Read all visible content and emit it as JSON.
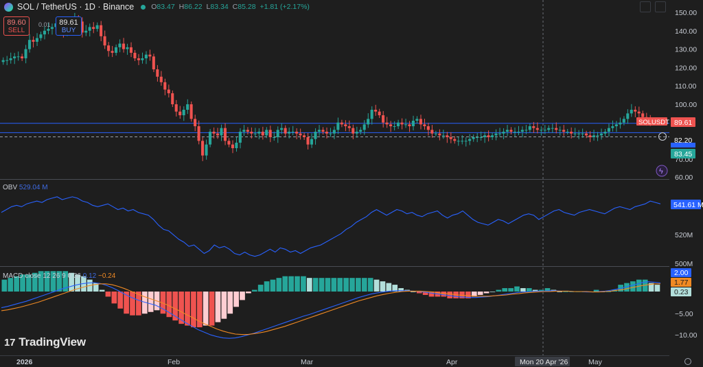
{
  "header": {
    "title": "SOL / TetherUS · 1D · Binance",
    "open_label": "O",
    "open": "83.47",
    "high_label": "H",
    "high": "86.22",
    "low_label": "L",
    "low": "83.34",
    "close_label": "C",
    "close": "85.28",
    "change": "+1.81 (+2.17%)"
  },
  "trade": {
    "sell_price": "89.60",
    "sell_label": "SELL",
    "buy_price": "89.61",
    "buy_label": "BUY",
    "spread": "0.01"
  },
  "obv_label": {
    "name": "OBV",
    "value": "529.04 M"
  },
  "macd_label": {
    "name": "MACD close 12 26 9",
    "hist": "0.36",
    "macd": "0.12",
    "signal": "−0.24"
  },
  "logo": {
    "text": "TradingView",
    "icon": "tradingview-logo-icon"
  },
  "colors": {
    "up": "#26a69a",
    "down": "#ef5350",
    "blue": "#2962ff",
    "orange": "#f08a24",
    "bg": "#1e1e1e"
  },
  "chart_data": [
    {
      "type": "candlestick",
      "title": "SOL / TetherUS · 1D · Binance",
      "x_ticks": [
        "2026",
        "Feb",
        "Mar",
        "Apr",
        "Mon 20 Apr '26",
        "May"
      ],
      "y_ticks": [
        "150.00",
        "140.00",
        "130.00",
        "120.00",
        "110.00",
        "100.00",
        "70.00",
        "60.00"
      ],
      "ylim": [
        60,
        150
      ],
      "price_tags": [
        {
          "label": "SOLUSDT",
          "value": "89.61",
          "color": "#ef5350"
        },
        {
          "label": "",
          "value": "82.20",
          "color": "#1e1e1e"
        },
        {
          "label": "",
          "value": "83.45",
          "color": "#26a69a"
        }
      ],
      "horizontal_lines": [
        {
          "value": 89.6,
          "style": "solid",
          "color": "#2962ff"
        },
        {
          "value": 84.5,
          "style": "solid",
          "color": "#2962ff"
        },
        {
          "value": 82.2,
          "style": "dashed",
          "color": "#9aa0ab"
        }
      ],
      "close_path": [
        124,
        124,
        125,
        126,
        126,
        125,
        130,
        135,
        134,
        136,
        138,
        140,
        141,
        142,
        144,
        142,
        139,
        141,
        143,
        147,
        145,
        139,
        140,
        142,
        141,
        143,
        137,
        132,
        129,
        128,
        131,
        133,
        130,
        131,
        128,
        125,
        124,
        125,
        127,
        126,
        119,
        115,
        112,
        108,
        106,
        100,
        96,
        94,
        97,
        100,
        92,
        88,
        80,
        72,
        78,
        85,
        84,
        83,
        87,
        80,
        78,
        76,
        79,
        85,
        86,
        85,
        84,
        84,
        85,
        83,
        86,
        82,
        82,
        86,
        87,
        84,
        85,
        85,
        84,
        83,
        82,
        78,
        81,
        85,
        86,
        85,
        84,
        84,
        86,
        90,
        89,
        88,
        87,
        84,
        85,
        86,
        89,
        92,
        97,
        96,
        94,
        90,
        89,
        88,
        88,
        90,
        89,
        89,
        88,
        91,
        92,
        89,
        88,
        86,
        84,
        84,
        83,
        83,
        82,
        81,
        80,
        80,
        80,
        80,
        81,
        82,
        82,
        82,
        83,
        82,
        83,
        84,
        84,
        85,
        86,
        85,
        85,
        85,
        86,
        86,
        88,
        87,
        86,
        86,
        86,
        87,
        87,
        86,
        86,
        85,
        85,
        84,
        84,
        84,
        84,
        83,
        82,
        83,
        83,
        84,
        85,
        87,
        88,
        89,
        90,
        92,
        95,
        97,
        96,
        95,
        93,
        91,
        90
      ],
      "up_color": "#26a69a",
      "down_color": "#ef5350"
    },
    {
      "type": "line",
      "title": "OBV",
      "y_ticks": [
        "541.61 M",
        "520M",
        "500M"
      ],
      "series": [
        {
          "name": "OBV",
          "color": "#2962ff",
          "last": "541.61 M",
          "values": [
            536,
            538,
            540,
            541,
            540,
            542,
            543,
            544,
            543,
            545,
            546,
            547,
            545,
            546,
            547,
            546,
            544,
            543,
            541,
            540,
            541,
            542,
            540,
            538,
            539,
            537,
            538,
            536,
            535,
            534,
            531,
            527,
            524,
            523,
            520,
            517,
            515,
            512,
            513,
            510,
            507,
            509,
            513,
            511,
            512,
            510,
            507,
            506,
            508,
            506,
            505,
            506,
            508,
            510,
            508,
            511,
            510,
            508,
            509,
            507,
            509,
            511,
            512,
            513,
            515,
            517,
            519,
            521,
            524,
            526,
            529,
            531,
            533,
            536,
            538,
            536,
            534,
            536,
            538,
            537,
            535,
            536,
            534,
            533,
            535,
            536,
            537,
            534,
            532,
            534,
            535,
            537,
            534,
            531,
            529,
            528,
            527,
            529,
            531,
            530,
            528,
            530,
            532,
            534,
            535,
            534,
            531,
            533,
            535,
            537,
            538,
            536,
            535,
            534,
            536,
            537,
            538,
            537,
            536,
            535,
            537,
            539,
            540,
            539,
            538,
            540,
            541,
            542,
            544,
            543,
            542
          ]
        }
      ]
    },
    {
      "type": "bar+line",
      "title": "MACD close 12 26 9",
      "y_ticks": [
        "2.00",
        "1.77",
        "0.23",
        "−5.00",
        "−10.00"
      ],
      "ylim": [
        -12,
        4
      ],
      "series": [
        {
          "name": "MACD",
          "color": "#2962ff",
          "last": "2.00",
          "values": [
            -3.8,
            -3.5,
            -3.1,
            -2.7,
            -2.3,
            -1.8,
            -1.3,
            -0.8,
            -0.3,
            0.2,
            0.7,
            1.1,
            1.5,
            1.8,
            2.0,
            2.1,
            1.9,
            1.5,
            0.9,
            0.2,
            -0.6,
            -1.3,
            -1.9,
            -2.4,
            -2.8,
            -3.2,
            -3.9,
            -4.7,
            -5.6,
            -6.5,
            -7.4,
            -8.2,
            -9.0,
            -9.6,
            -10.2,
            -10.6,
            -10.9,
            -11.0,
            -10.9,
            -10.6,
            -10.2,
            -9.8,
            -9.3,
            -8.8,
            -8.3,
            -7.8,
            -7.3,
            -6.8,
            -6.3,
            -5.8,
            -5.4,
            -4.9,
            -4.4,
            -3.9,
            -3.4,
            -2.9,
            -2.4,
            -1.9,
            -1.4,
            -1.0,
            -0.6,
            -0.3,
            -0.1,
            0.1,
            0.2,
            0.2,
            0.2,
            0.1,
            0.0,
            -0.2,
            -0.4,
            -0.6,
            -0.8,
            -1.0,
            -1.2,
            -1.3,
            -1.4,
            -1.4,
            -1.3,
            -1.2,
            -1.0,
            -0.8,
            -0.6,
            -0.4,
            -0.2,
            -0.1,
            0.0,
            0.1,
            0.1,
            0.2,
            0.2,
            0.1,
            0.1,
            0.0,
            0.0,
            -0.1,
            -0.1,
            0.0,
            0.1,
            0.3,
            0.6,
            0.9,
            1.3,
            1.7,
            2.1,
            2.3,
            2.2,
            2.0
          ]
        },
        {
          "name": "Signal",
          "color": "#f08a24",
          "last": "1.77",
          "values": [
            -4.5,
            -4.3,
            -4.0,
            -3.7,
            -3.3,
            -2.9,
            -2.5,
            -2.0,
            -1.5,
            -1.0,
            -0.5,
            0.0,
            0.5,
            0.9,
            1.3,
            1.6,
            1.8,
            1.8,
            1.6,
            1.2,
            0.7,
            0.1,
            -0.5,
            -1.1,
            -1.6,
            -2.1,
            -2.6,
            -3.2,
            -3.9,
            -4.6,
            -5.4,
            -6.1,
            -6.9,
            -7.6,
            -8.2,
            -8.8,
            -9.3,
            -9.7,
            -10.0,
            -10.1,
            -10.1,
            -9.9,
            -9.7,
            -9.4,
            -9.0,
            -8.6,
            -8.2,
            -7.7,
            -7.2,
            -6.7,
            -6.2,
            -5.7,
            -5.2,
            -4.7,
            -4.2,
            -3.7,
            -3.2,
            -2.7,
            -2.2,
            -1.8,
            -1.4,
            -1.0,
            -0.7,
            -0.4,
            -0.2,
            0.0,
            0.1,
            0.1,
            0.1,
            0.0,
            -0.1,
            -0.3,
            -0.5,
            -0.6,
            -0.8,
            -0.9,
            -1.0,
            -1.1,
            -1.1,
            -1.1,
            -1.0,
            -0.9,
            -0.8,
            -0.6,
            -0.5,
            -0.3,
            -0.2,
            -0.1,
            0.0,
            0.0,
            0.1,
            0.1,
            0.1,
            0.0,
            0.0,
            0.0,
            -0.1,
            -0.1,
            0.0,
            0.1,
            0.3,
            0.5,
            0.8,
            1.1,
            1.4,
            1.6,
            1.8,
            1.8
          ]
        },
        {
          "name": "Histogram",
          "last": "0.23",
          "pos_color": "#26a69a",
          "pos_fade": "#b2dfdb",
          "neg_color": "#ef5350",
          "neg_fade": "#ffcdd2",
          "values": [
            0.7,
            0.8,
            0.9,
            1.0,
            1.0,
            1.1,
            1.2,
            1.2,
            1.2,
            1.2,
            1.2,
            1.1,
            1.0,
            0.9,
            0.7,
            0.5,
            0.1,
            -0.3,
            -0.7,
            -1.0,
            -1.3,
            -1.4,
            -1.4,
            -1.3,
            -1.2,
            -1.1,
            -1.3,
            -1.5,
            -1.7,
            -1.9,
            -2.0,
            -2.1,
            -2.1,
            -2.0,
            -2.0,
            -1.8,
            -1.6,
            -1.3,
            -0.9,
            -0.5,
            -0.1,
            0.1,
            0.4,
            0.6,
            0.7,
            0.8,
            0.9,
            0.9,
            0.9,
            0.9,
            0.8,
            0.8,
            0.8,
            0.8,
            0.8,
            0.8,
            0.8,
            0.8,
            0.8,
            0.8,
            0.8,
            0.7,
            0.6,
            0.5,
            0.4,
            0.2,
            0.1,
            0.0,
            -0.1,
            -0.2,
            -0.3,
            -0.3,
            -0.3,
            -0.4,
            -0.4,
            -0.4,
            -0.4,
            -0.3,
            -0.2,
            -0.1,
            0.0,
            0.1,
            0.2,
            0.2,
            0.3,
            0.2,
            0.2,
            0.1,
            0.1,
            0.2,
            0.1,
            0.0,
            0.0,
            0.0,
            0.0,
            0.0,
            0.0,
            0.1,
            0.0,
            0.0,
            0.1,
            0.4,
            0.5,
            0.6,
            0.7,
            0.7,
            0.5,
            0.4
          ]
        }
      ]
    }
  ]
}
